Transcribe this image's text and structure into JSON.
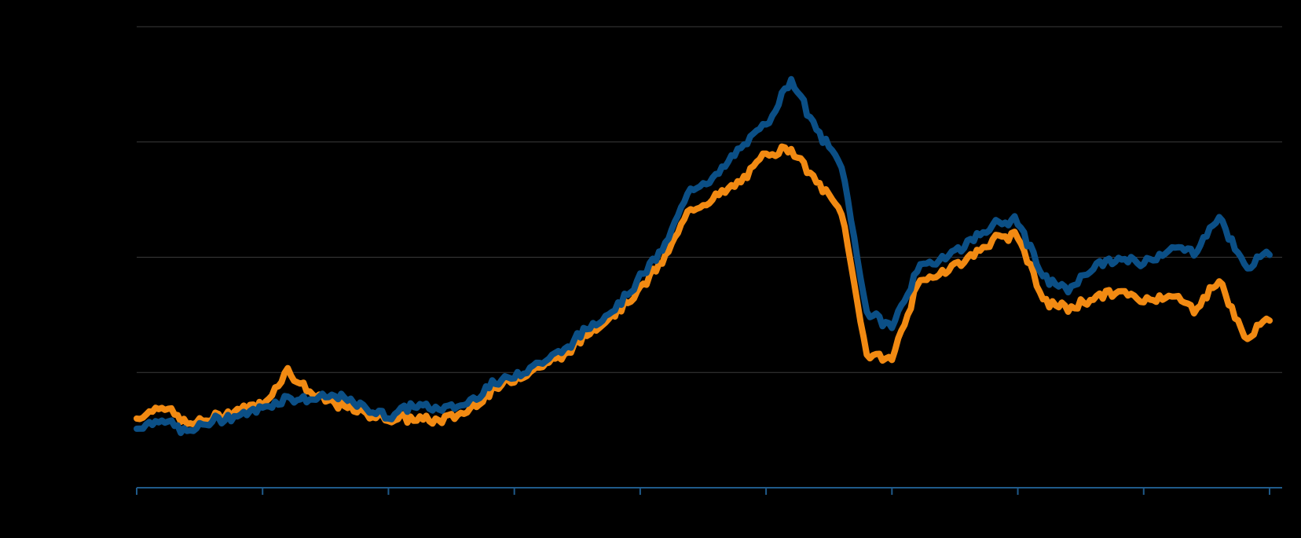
{
  "chart_data": {
    "type": "line",
    "title": "",
    "xlabel": "",
    "ylabel": "",
    "grid": true,
    "x": [
      0,
      2,
      4,
      6,
      8,
      10,
      12,
      14,
      16,
      18,
      20,
      22,
      24,
      26,
      28,
      30,
      32,
      34,
      36,
      38,
      40,
      42,
      44,
      46,
      48,
      50,
      52,
      54,
      56,
      58,
      60,
      62,
      64,
      66,
      68,
      70,
      72,
      74,
      76,
      78,
      80,
      82,
      84,
      86,
      88,
      90
    ],
    "xlim": [
      0,
      91
    ],
    "x_ticks": [
      0,
      10,
      20,
      30,
      40,
      50,
      60,
      70,
      80,
      90
    ],
    "ylim": [
      0,
      4
    ],
    "y_gridlines": [
      1,
      2,
      3,
      4
    ],
    "series": [
      {
        "color": "#0b4f86",
        "values": [
          0.52,
          0.6,
          0.48,
          0.58,
          0.62,
          0.7,
          0.78,
          0.76,
          0.8,
          0.7,
          0.62,
          0.72,
          0.68,
          0.72,
          0.88,
          0.98,
          1.08,
          1.2,
          1.4,
          1.56,
          1.82,
          2.1,
          2.6,
          2.7,
          2.95,
          3.15,
          3.55,
          3.1,
          2.8,
          1.52,
          1.4,
          1.88,
          2.0,
          2.12,
          2.28,
          2.32,
          1.82,
          1.72,
          1.92,
          1.98,
          1.95,
          2.08,
          2.05,
          2.35,
          1.92,
          2.02
        ]
      },
      {
        "color": "#f28a12",
        "values": [
          0.6,
          0.72,
          0.55,
          0.6,
          0.68,
          0.72,
          1.02,
          0.8,
          0.72,
          0.65,
          0.6,
          0.6,
          0.58,
          0.65,
          0.82,
          0.95,
          1.05,
          1.15,
          1.35,
          1.52,
          1.72,
          2.0,
          2.42,
          2.52,
          2.65,
          2.9,
          2.95,
          2.65,
          2.4,
          1.15,
          1.12,
          1.75,
          1.88,
          1.98,
          2.15,
          2.2,
          1.62,
          1.55,
          1.65,
          1.7,
          1.62,
          1.68,
          1.55,
          1.8,
          1.3,
          1.45
        ]
      }
    ]
  }
}
